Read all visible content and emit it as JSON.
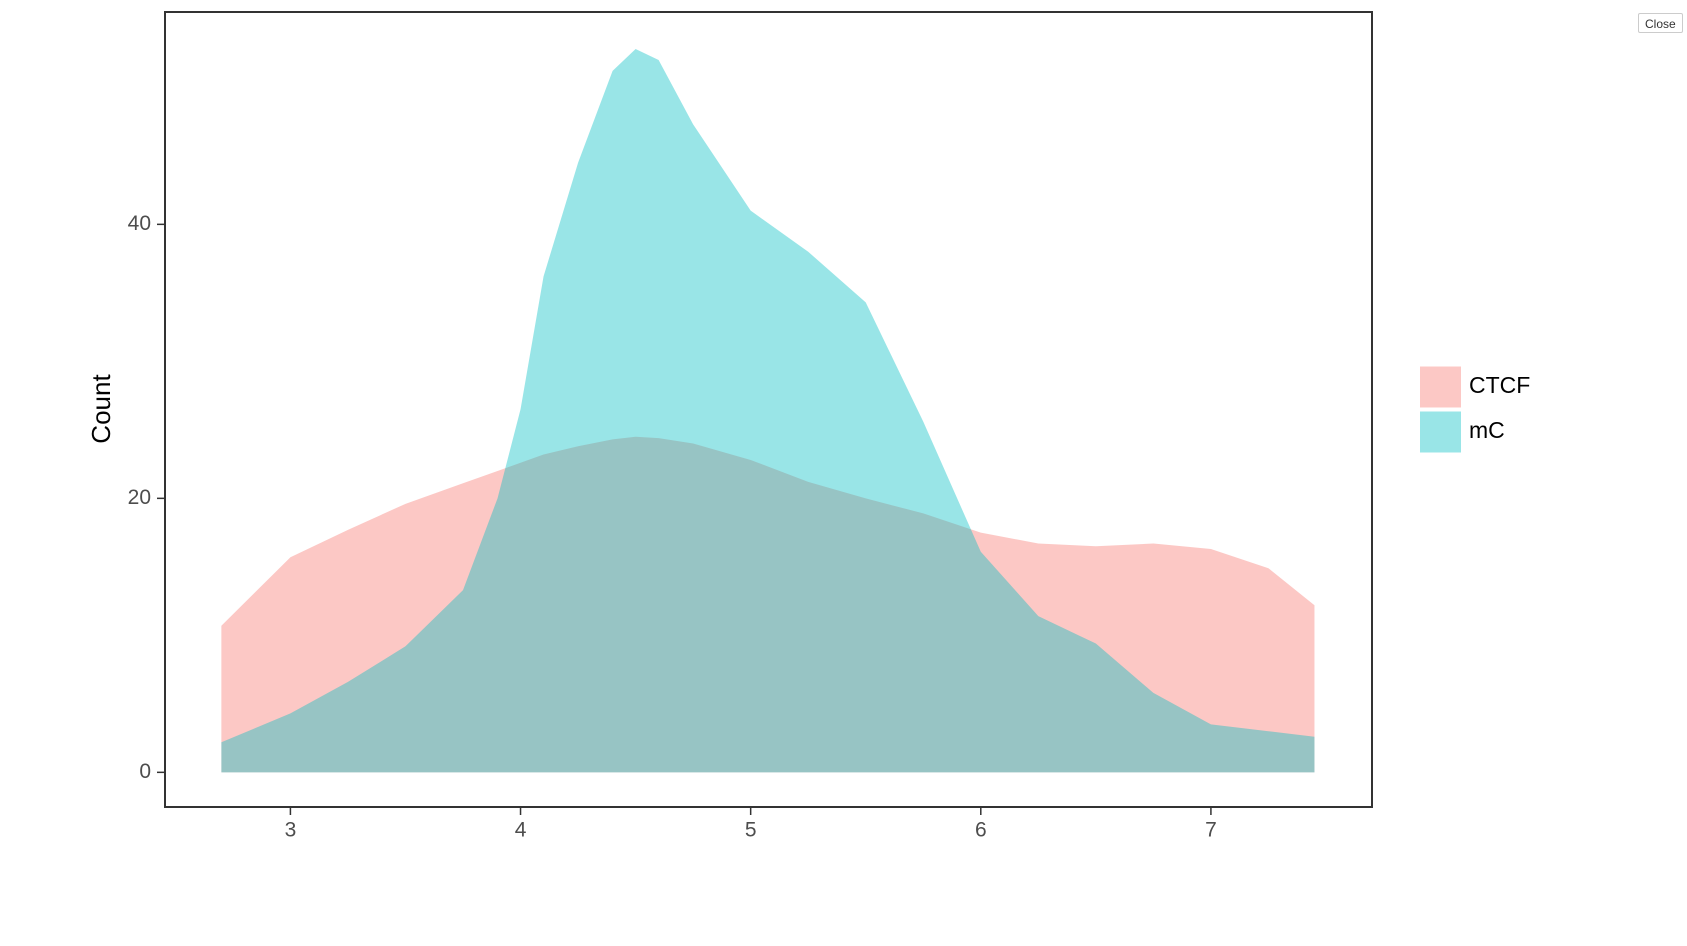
{
  "chart_data": {
    "type": "area",
    "y_label": "Count",
    "x": [
      2.7,
      3.0,
      3.25,
      3.5,
      3.75,
      3.9,
      4.0,
      4.1,
      4.25,
      4.4,
      4.5,
      4.6,
      4.75,
      5.0,
      5.25,
      5.5,
      5.75,
      6.0,
      6.25,
      6.5,
      6.75,
      7.0,
      7.25,
      7.45
    ],
    "series": [
      {
        "name": "CTCF",
        "color": "#f8766d",
        "values": [
          10.7,
          15.7,
          17.7,
          19.6,
          21.1,
          22.0,
          22.6,
          23.2,
          23.8,
          24.3,
          24.5,
          24.4,
          24.0,
          22.8,
          21.2,
          20.0,
          18.9,
          17.5,
          16.7,
          16.5,
          16.7,
          16.3,
          14.9,
          12.2
        ]
      },
      {
        "name": "mC",
        "color": "#00bfc4",
        "values": [
          2.2,
          4.3,
          6.6,
          9.2,
          13.3,
          20.0,
          26.5,
          36.2,
          44.5,
          51.2,
          52.8,
          52.0,
          47.3,
          41.0,
          38.0,
          34.3,
          25.6,
          16.1,
          11.4,
          9.4,
          5.8,
          3.5,
          3.0,
          2.6
        ]
      }
    ],
    "xlim": [
      2.455,
      7.7
    ],
    "ylim": [
      -2.53,
      55.5
    ],
    "xticks": [
      3,
      4,
      5,
      6,
      7
    ],
    "yticks": [
      0,
      20,
      40
    ],
    "fill_opacity": 0.4,
    "legend": "right"
  },
  "ui": {
    "close_button": "Close"
  }
}
